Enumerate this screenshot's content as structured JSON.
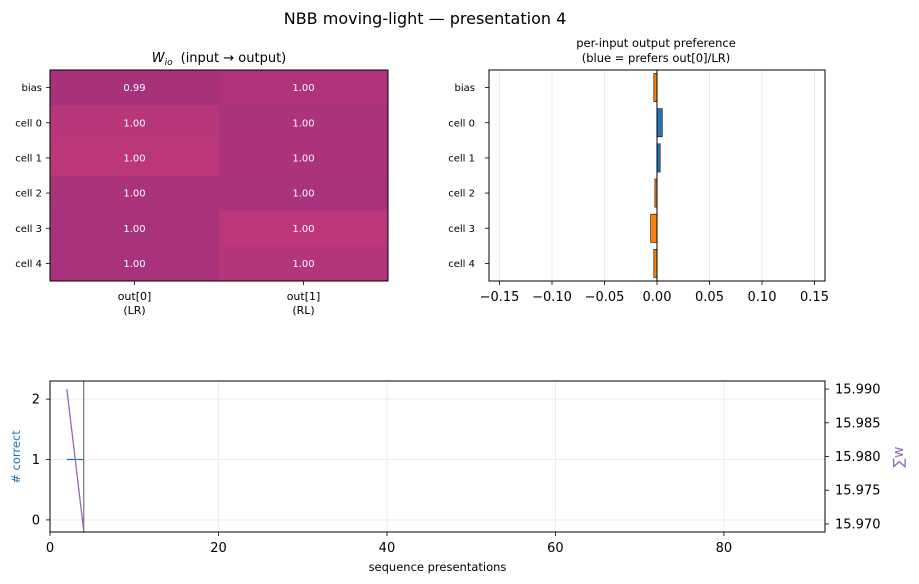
{
  "figure": {
    "title": "NBB moving-light — presentation 4"
  },
  "chart_data": [
    {
      "type": "heatmap",
      "title_prefix": "W",
      "title_subscript": "io",
      "title_suffix": "(input → output)",
      "rows": [
        "bias",
        "cell 0",
        "cell 1",
        "cell 2",
        "cell 3",
        "cell 4"
      ],
      "columns": [
        {
          "line1": "out[0]",
          "line2": "(LR)"
        },
        {
          "line1": "out[1]",
          "line2": "(RL)"
        }
      ],
      "values": [
        [
          0.99,
          1.0
        ],
        [
          1.0,
          1.0
        ],
        [
          1.0,
          1.0
        ],
        [
          1.0,
          1.0
        ],
        [
          1.0,
          1.0
        ],
        [
          1.0,
          1.0
        ]
      ],
      "labels": [
        [
          "0.99",
          "1.00"
        ],
        [
          "1.00",
          "1.00"
        ],
        [
          "1.00",
          "1.00"
        ],
        [
          "1.00",
          "1.00"
        ],
        [
          "1.00",
          "1.00"
        ],
        [
          "1.00",
          "1.00"
        ]
      ],
      "colors": [
        [
          "#a8327a",
          "#b0337a"
        ],
        [
          "#b8367a",
          "#aa337b"
        ],
        [
          "#bb3778",
          "#ac337b"
        ],
        [
          "#ab337b",
          "#a8327b"
        ],
        [
          "#a8327b",
          "#bc3779"
        ],
        [
          "#a8327b",
          "#b5357a"
        ]
      ],
      "label_color": "#ffffff"
    },
    {
      "type": "bar",
      "orientation": "horizontal",
      "title_line1": "per-input output preference",
      "title_line2": "(blue = prefers out[0]/LR)",
      "categories": [
        "bias",
        "cell 0",
        "cell 1",
        "cell 2",
        "cell 3",
        "cell 4"
      ],
      "values": [
        -0.003,
        0.005,
        0.003,
        -0.002,
        -0.006,
        -0.003
      ],
      "xlim": [
        -0.16,
        0.16
      ],
      "xticks": [
        -0.15,
        -0.1,
        -0.05,
        0.0,
        0.05,
        0.1,
        0.15
      ],
      "xtick_labels": [
        "−0.15",
        "−0.10",
        "−0.05",
        "0.00",
        "0.05",
        "0.10",
        "0.15"
      ],
      "grid": "x",
      "positive_color": "#1f77b4",
      "negative_color": "#ff7f0e"
    },
    {
      "type": "line",
      "xlabel": "sequence presentations",
      "ylabel_left": "# correct",
      "ylabel_right": "∑w",
      "xlim": [
        0,
        92
      ],
      "xticks": [
        0,
        20,
        40,
        60,
        80
      ],
      "xtick_labels": [
        "0",
        "20",
        "40",
        "60",
        "80"
      ],
      "ylim_left": [
        -0.2,
        2.3
      ],
      "yticks_left": [
        0,
        1,
        2
      ],
      "ytick_labels_left": [
        "0",
        "1",
        "2"
      ],
      "ylim_right": [
        15.9688,
        15.9912
      ],
      "yticks_right": [
        15.97,
        15.975,
        15.98,
        15.985,
        15.99
      ],
      "ytick_labels_right": [
        "15.970",
        "15.975",
        "15.980",
        "15.985",
        "15.990"
      ],
      "grid": true,
      "current_presentation": 4,
      "series": [
        {
          "axis": "left",
          "color": "#1f77b4",
          "x": [
            2,
            3,
            4
          ],
          "y": [
            1,
            1,
            1
          ]
        },
        {
          "axis": "right",
          "color": "#9467bd",
          "x": [
            2,
            4
          ],
          "y": [
            15.99,
            15.969
          ]
        }
      ],
      "marker_color": "#808080",
      "ylabel_left_color": "#1f77b4",
      "ylabel_right_color": "#9467bd"
    }
  ]
}
